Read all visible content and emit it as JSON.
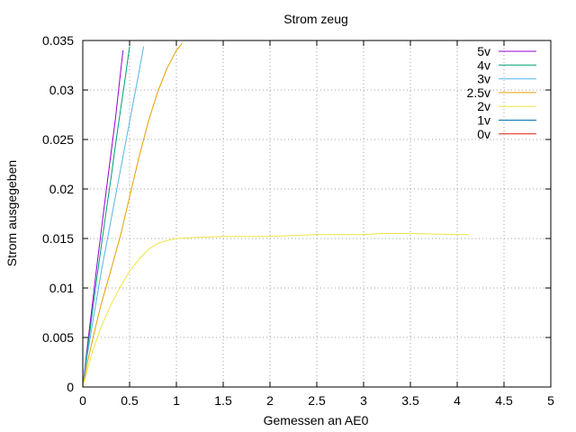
{
  "chart_data": {
    "type": "line",
    "title": "Strom zeug",
    "xlabel": "Gemessen an AE0",
    "ylabel": "Strom ausgegeben",
    "xlim": [
      0,
      5
    ],
    "ylim": [
      0,
      0.035
    ],
    "xticks": [
      0,
      0.5,
      1,
      1.5,
      2,
      2.5,
      3,
      3.5,
      4,
      4.5,
      5
    ],
    "xtick_labels": [
      "0",
      "0.5",
      "1",
      "1.5",
      "2",
      "2.5",
      "3",
      "3.5",
      "4",
      "4.5",
      "5"
    ],
    "yticks": [
      0,
      0.005,
      0.01,
      0.015,
      0.02,
      0.025,
      0.03,
      0.035
    ],
    "ytick_labels": [
      "0",
      "0.005",
      "0.01",
      "0.015",
      "0.02",
      "0.025",
      "0.03",
      "0.035"
    ],
    "grid": true,
    "legend_position": "top-right",
    "series": [
      {
        "name": "5v",
        "color": "#9400d3",
        "x": [
          0,
          0.05,
          0.1,
          0.15,
          0.2,
          0.25,
          0.3,
          0.35,
          0.4,
          0.43
        ],
        "y": [
          0,
          0.0042,
          0.0082,
          0.0122,
          0.016,
          0.0198,
          0.0235,
          0.0272,
          0.0315,
          0.034
        ]
      },
      {
        "name": "4v",
        "color": "#009e73",
        "x": [
          0,
          0.05,
          0.1,
          0.15,
          0.2,
          0.25,
          0.3,
          0.35,
          0.4,
          0.45,
          0.5
        ],
        "y": [
          0,
          0.0038,
          0.0074,
          0.011,
          0.0144,
          0.0178,
          0.021,
          0.0245,
          0.0278,
          0.031,
          0.0344
        ]
      },
      {
        "name": "3v",
        "color": "#56b4e9",
        "x": [
          0,
          0.05,
          0.1,
          0.15,
          0.2,
          0.3,
          0.4,
          0.5,
          0.6,
          0.65
        ],
        "y": [
          0,
          0.0033,
          0.0062,
          0.009,
          0.0118,
          0.0168,
          0.0218,
          0.0268,
          0.0318,
          0.0344
        ]
      },
      {
        "name": "2.5v",
        "color": "#e69f00",
        "x": [
          0,
          0.05,
          0.1,
          0.15,
          0.2,
          0.3,
          0.4,
          0.5,
          0.6,
          0.7,
          0.8,
          0.9,
          1.0,
          1.06
        ],
        "y": [
          0,
          0.0025,
          0.0046,
          0.0066,
          0.0085,
          0.0118,
          0.0152,
          0.0192,
          0.0232,
          0.0268,
          0.0298,
          0.0322,
          0.034,
          0.0347
        ]
      },
      {
        "name": "2v",
        "color": "#f0e442",
        "x": [
          0,
          0.1,
          0.2,
          0.3,
          0.4,
          0.5,
          0.6,
          0.7,
          0.8,
          0.9,
          1.0,
          1.2,
          1.5,
          2.0,
          2.5,
          3.0,
          3.2,
          3.5,
          4.0,
          4.12
        ],
        "y": [
          0,
          0.0035,
          0.0062,
          0.0083,
          0.0101,
          0.0117,
          0.0129,
          0.0139,
          0.0145,
          0.0148,
          0.015,
          0.0151,
          0.0152,
          0.0152,
          0.0154,
          0.0154,
          0.0155,
          0.0155,
          0.0154,
          0.0154
        ]
      },
      {
        "name": "1v",
        "color": "#0072b2",
        "x": [
          0.75,
          0.82,
          1.15,
          1.3,
          1.75,
          2.3,
          2.5,
          2.9,
          3.05,
          3.45,
          3.6
        ],
        "y": [
          0,
          0,
          0,
          0,
          0,
          0,
          0,
          0,
          0,
          0,
          0
        ]
      },
      {
        "name": "0v",
        "color": "#e51e10",
        "x": [
          1.75,
          2.5,
          3.0,
          3.5,
          4.0,
          4.5,
          5.0
        ],
        "y": [
          0,
          0,
          0,
          0,
          0,
          0,
          0
        ]
      }
    ]
  }
}
